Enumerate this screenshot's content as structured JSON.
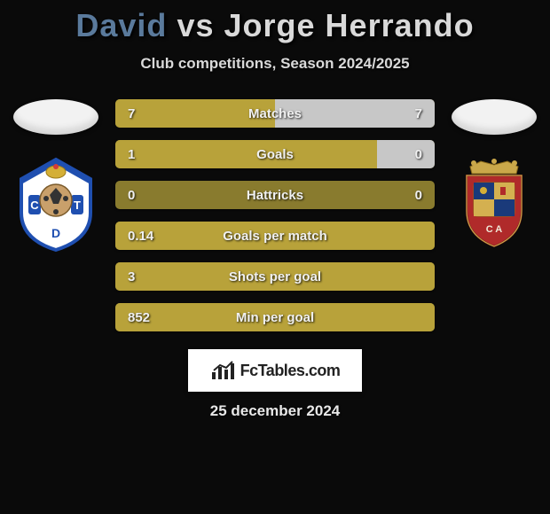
{
  "title": {
    "player1": "David",
    "vs": "vs",
    "player2": "Jorge Herrando",
    "player1_color": "#5a7a9c",
    "player2_color": "#d9d9d9",
    "vs_color": "#d9d9d9"
  },
  "subtitle": "Club competitions, Season 2024/2025",
  "colors": {
    "background": "#0a0a0a",
    "bar_base": "#897b2e",
    "bar_left_fill": "#b8a23a",
    "bar_right_fill": "#c7c7c7",
    "text": "#f0f0f0",
    "logo_bg": "#ffffff"
  },
  "crest_left": {
    "base": "#ffffff",
    "accent": "#1f4fb0",
    "ball": "#c9a06b"
  },
  "crest_right": {
    "base": "#b02a2a",
    "accent": "#1a3a7a",
    "crown": "#caa84a"
  },
  "bars": [
    {
      "metric": "Matches",
      "left": "7",
      "right": "7",
      "left_pct": 50,
      "right_pct": 50
    },
    {
      "metric": "Goals",
      "left": "1",
      "right": "0",
      "left_pct": 82,
      "right_pct": 18
    },
    {
      "metric": "Hattricks",
      "left": "0",
      "right": "0",
      "left_pct": 0,
      "right_pct": 0
    },
    {
      "metric": "Goals per match",
      "left": "0.14",
      "right": "",
      "left_pct": 100,
      "right_pct": 0
    },
    {
      "metric": "Shots per goal",
      "left": "3",
      "right": "",
      "left_pct": 100,
      "right_pct": 0
    },
    {
      "metric": "Min per goal",
      "left": "852",
      "right": "",
      "left_pct": 100,
      "right_pct": 0
    }
  ],
  "bar_style": {
    "height": 32,
    "radius": 5,
    "gap": 14,
    "fontsize": 15
  },
  "logo_text": "FcTables.com",
  "date": "25 december 2024"
}
